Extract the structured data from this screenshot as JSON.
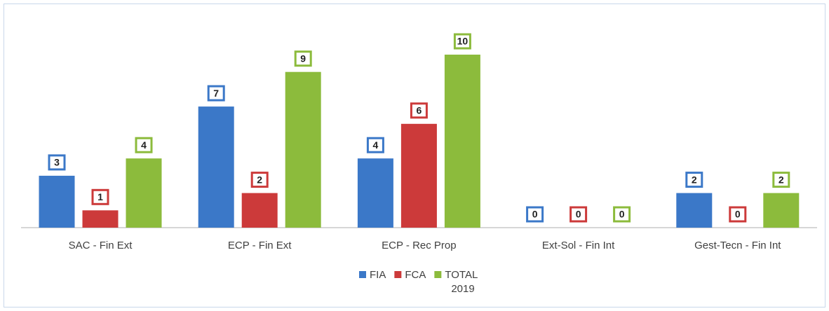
{
  "chart_data": {
    "type": "bar",
    "categories": [
      "SAC - Fin Ext",
      "ECP - Fin Ext",
      "ECP - Rec Prop",
      "Ext-Sol - Fin Int",
      "Gest-Tecn - Fin Int"
    ],
    "series": [
      {
        "name": "FIA",
        "color": "#3b78c8",
        "values": [
          3,
          7,
          4,
          0,
          2
        ]
      },
      {
        "name": "FCA",
        "color": "#cc3a3a",
        "values": [
          1,
          2,
          6,
          0,
          0
        ]
      },
      {
        "name": "TOTAL",
        "color": "#8cbb3c",
        "values": [
          4,
          9,
          10,
          0,
          2
        ]
      }
    ],
    "legend": "bottom",
    "legend_title": "2019"
  }
}
